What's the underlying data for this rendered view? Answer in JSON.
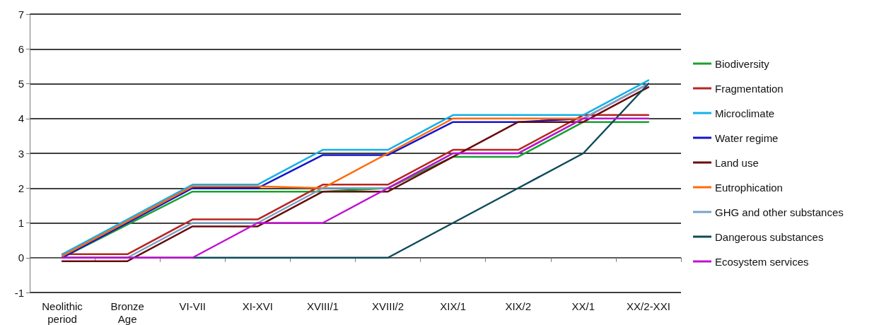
{
  "chart_data": {
    "type": "line",
    "categories": [
      "Neolithic\nperiod",
      "Bronze\nAge",
      "VI-VII",
      "XI-XVI",
      "XVIII/1",
      "XVIII/2",
      "XIX/1",
      "XIX/2",
      "XX/1",
      "XX/2-XXI"
    ],
    "series": [
      {
        "name": "Biodiversity",
        "color": "#17a22e",
        "values": [
          0,
          0.95,
          1.9,
          1.9,
          1.9,
          2.0,
          2.9,
          2.9,
          3.9,
          3.9
        ]
      },
      {
        "name": "Fragmentation",
        "color": "#b8251e",
        "values": [
          0.1,
          0.1,
          1.1,
          1.1,
          2.1,
          2.1,
          3.1,
          3.1,
          4.1,
          4.1
        ]
      },
      {
        "name": "Microclimate",
        "color": "#12b0ea",
        "values": [
          0.1,
          1.1,
          2.1,
          2.1,
          3.1,
          3.1,
          4.1,
          4.1,
          4.1,
          5.1
        ]
      },
      {
        "name": "Water regime",
        "color": "#1414cc",
        "values": [
          0,
          1.0,
          2.0,
          2.0,
          2.95,
          2.95,
          3.9,
          3.9,
          4.0,
          5.0
        ]
      },
      {
        "name": "Land use",
        "color": "#6a0a0a",
        "values": [
          -0.1,
          -0.1,
          0.9,
          0.9,
          1.9,
          1.9,
          2.9,
          3.9,
          3.9,
          4.9
        ]
      },
      {
        "name": "Eutrophication",
        "color": "#ff6a0a",
        "values": [
          0.05,
          1.05,
          2.05,
          2.05,
          2.0,
          3.0,
          4.0,
          4.0,
          4.0,
          5.0
        ]
      },
      {
        "name": "GHG and other substances",
        "color": "#7aa2c8",
        "values": [
          0,
          0,
          1.0,
          1.0,
          2.0,
          2.0,
          3.0,
          3.0,
          4.0,
          5.0
        ]
      },
      {
        "name": "Dangerous substances",
        "color": "#0d4a5a",
        "values": [
          0,
          0,
          0,
          0,
          0,
          0,
          1.0,
          2.0,
          3.0,
          5.0
        ]
      },
      {
        "name": "Ecosystem services",
        "color": "#c010d0",
        "values": [
          0,
          0,
          0,
          1.0,
          1.0,
          2.0,
          3.0,
          3.0,
          4.0,
          4.0
        ]
      }
    ],
    "ylim": [
      -1,
      7
    ],
    "yticks": [
      -1,
      0,
      1,
      2,
      3,
      4,
      5,
      6,
      7
    ],
    "grid": "y",
    "legend": "right",
    "marker": "none",
    "line_style": "solid"
  }
}
